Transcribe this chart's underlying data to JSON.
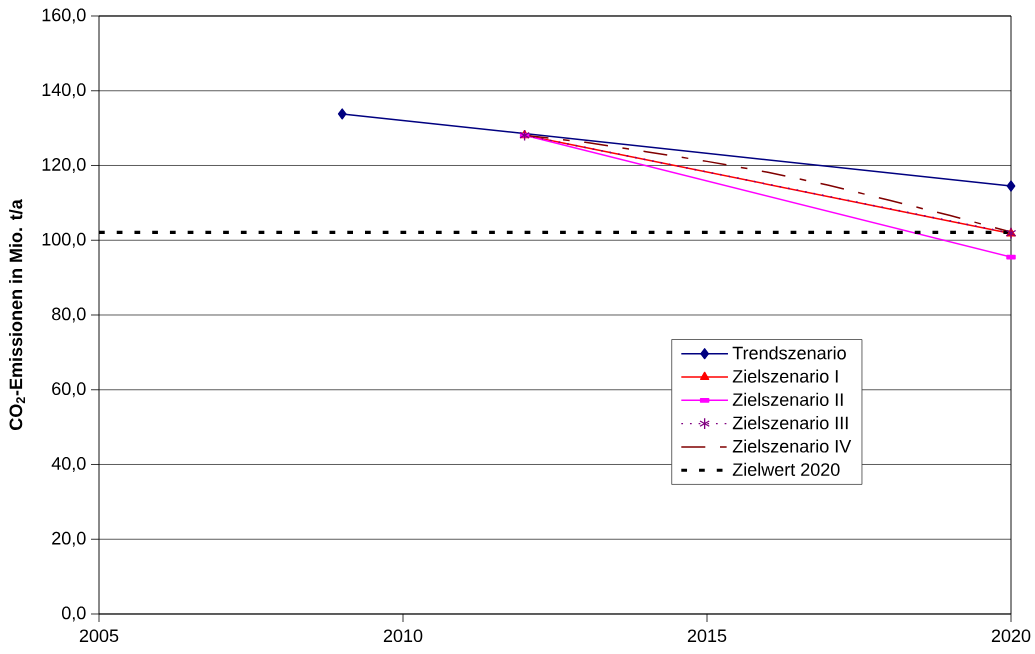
{
  "chart_data": {
    "type": "line",
    "ylabel": "CO$_{2}$-Emissionen in Mio. t/a",
    "xlim": [
      2005,
      2020
    ],
    "xticks": [
      2005,
      2010,
      2015,
      2020
    ],
    "ylim": [
      0,
      160
    ],
    "yticks": [
      {
        "value": 0,
        "label": "0,0"
      },
      {
        "value": 20,
        "label": "20,0"
      },
      {
        "value": 40,
        "label": "40,0"
      },
      {
        "value": 60,
        "label": "60,0"
      },
      {
        "value": 80,
        "label": "80,0"
      },
      {
        "value": 100,
        "label": "100,0"
      },
      {
        "value": 120,
        "label": "120,0"
      },
      {
        "value": 140,
        "label": "140,0"
      },
      {
        "value": 160,
        "label": "160,0"
      }
    ],
    "grid": "y",
    "legend": "bottom right",
    "series": [
      {
        "name": "Trendszenario",
        "color": "#000080",
        "x": [
          2009,
          2020
        ],
        "values": [
          133.8,
          114.5
        ],
        "marker": "diamond",
        "line_style": "solid"
      },
      {
        "name": "Zielszenario I",
        "color": "#ff0000",
        "x": [
          2012,
          2020
        ],
        "values": [
          128.1,
          101.8
        ],
        "marker": "triangle",
        "line_style": "solid"
      },
      {
        "name": "Zielszenario II",
        "color": "#ff00ff",
        "x": [
          2012,
          2020
        ],
        "values": [
          128.1,
          95.5
        ],
        "marker": "square",
        "line_style": "solid"
      },
      {
        "name": "Zielszenario III",
        "color": "#800080",
        "x": [
          2012,
          2020
        ],
        "values": [
          128.1,
          101.9
        ],
        "marker": "cross",
        "line_style": "dotted"
      },
      {
        "name": "Zielszenario IV",
        "color": "#800000",
        "x": [
          2012,
          2013,
          2014,
          2015,
          2016,
          2017,
          2018,
          2019,
          2020
        ],
        "values": [
          128.1,
          126.2,
          123.7,
          121.1,
          118.2,
          114.7,
          110.7,
          106.6,
          102.2
        ],
        "marker": "none",
        "line_style": "dashed"
      }
    ],
    "ref_lines": [
      {
        "axis": "y",
        "value": 102.1,
        "label": "Zielwert 2020",
        "color": "#000000",
        "line_style": "dotted"
      }
    ]
  }
}
